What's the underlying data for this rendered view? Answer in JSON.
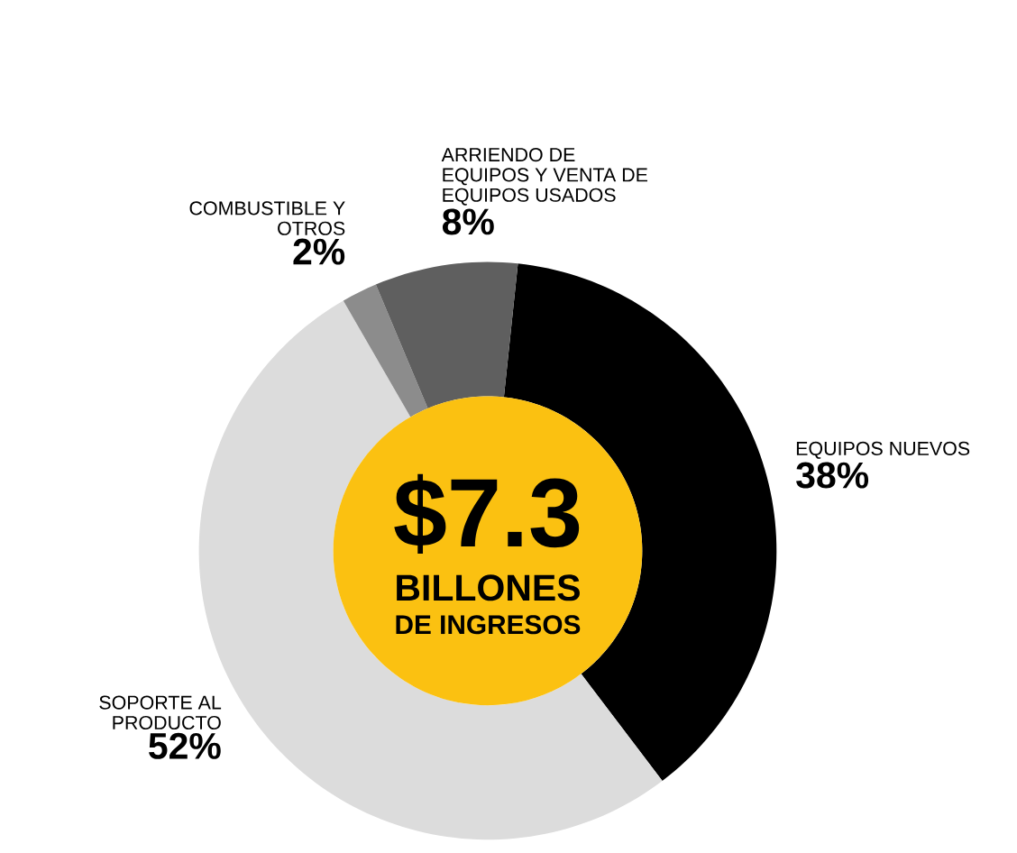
{
  "chart_data": {
    "type": "donut",
    "categories": [
      "EQUIPOS NUEVOS",
      "SOPORTE AL PRODUCTO",
      "COMBUSTIBLE Y OTROS",
      "ARRIENDO DE EQUIPOS Y VENTA DE EQUIPOS USADOS"
    ],
    "values": [
      38,
      52,
      2,
      8
    ],
    "value_labels": [
      "38%",
      "52%",
      "2%",
      "8%"
    ],
    "colors": [
      "#000000",
      "#dcdcdc",
      "#8c8c8c",
      "#5f5f5f"
    ],
    "annotations": [
      "$7.3",
      "BILLONES",
      "DE INGRESOS"
    ]
  }
}
